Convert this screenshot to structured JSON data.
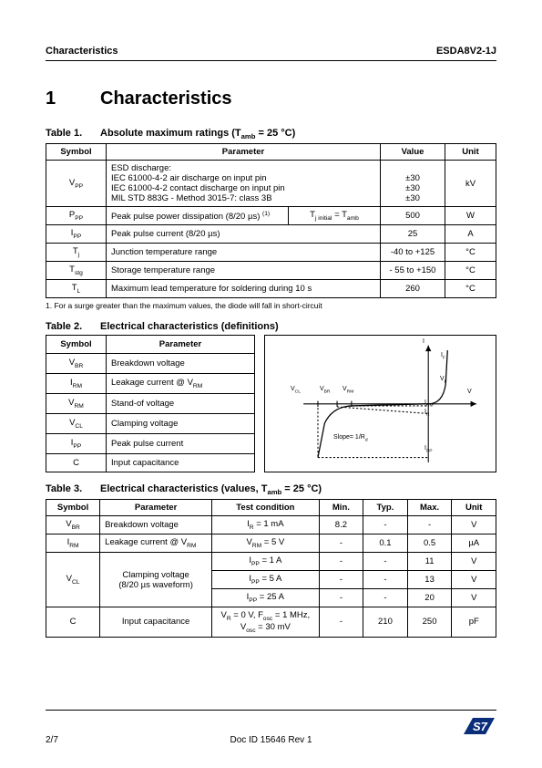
{
  "header": {
    "left": "Characteristics",
    "right": "ESDA8V2-1J"
  },
  "section": {
    "number": "1",
    "title": "Characteristics"
  },
  "table1": {
    "caption_num": "Table 1.",
    "caption": "Absolute maximum ratings (T",
    "caption_sub": "amb",
    "caption_end": " = 25 °C)",
    "headers": {
      "symbol": "Symbol",
      "parameter": "Parameter",
      "value": "Value",
      "unit": "Unit"
    },
    "rows": [
      {
        "symbol": "V",
        "sub": "PP",
        "param_lines": [
          "ESD discharge:",
          "IEC 61000-4-2 air discharge on input pin",
          "IEC 61000-4-2 contact discharge on input pin",
          "MIL STD 883G - Method 3015-7: class 3B"
        ],
        "value_lines": [
          "",
          "±30",
          "±30",
          "±30"
        ],
        "unit": "kV"
      },
      {
        "symbol": "P",
        "sub": "PP",
        "param": "Peak pulse power dissipation (8/20 µs)",
        "sup": "(1)",
        "cond_inline": "T<sub>j initial</sub> = T<sub>amb</sub>",
        "value": "500",
        "unit": "W"
      },
      {
        "symbol": "I",
        "sub": "PP",
        "param": "Peak pulse current (8/20 µs)",
        "value": "25",
        "unit": "A"
      },
      {
        "symbol": "T",
        "sub": "j",
        "param": "Junction temperature range",
        "value": "-40 to +125",
        "unit": "°C"
      },
      {
        "symbol": "T",
        "sub": "stg",
        "param": "Storage temperature range",
        "value": "- 55 to +150",
        "unit": "°C"
      },
      {
        "symbol": "T",
        "sub": "L",
        "param": "Maximum lead temperature for soldering during 10 s",
        "value": "260",
        "unit": "°C"
      }
    ]
  },
  "footnote1": "1.  For a surge greater than the maximum values, the diode will fall in short-circuit",
  "table2": {
    "caption_num": "Table 2.",
    "caption": "Electrical characteristics (definitions)",
    "headers": {
      "symbol": "Symbol",
      "parameter": "Parameter"
    },
    "rows": [
      {
        "symbol": "V",
        "sub": "BR",
        "param": "Breakdown voltage"
      },
      {
        "symbol": "I",
        "sub": "RM",
        "param": "Leakage current @ V",
        "param_sub": "RM"
      },
      {
        "symbol": "V",
        "sub": "RM",
        "param": "Stand-of voltage"
      },
      {
        "symbol": "V",
        "sub": "CL",
        "param": "Clamping voltage"
      },
      {
        "symbol": "I",
        "sub": "PP",
        "param": "Peak pulse current"
      },
      {
        "symbol": "C",
        "sub": "",
        "param": "Input capacitance"
      }
    ],
    "graph_labels": {
      "i": "I",
      "if": "I<sub>F</sub>",
      "vcl": "V<sub>CL</sub>",
      "vbr": "V<sub>BR</sub>",
      "vrm": "V<sub>RM</sub>",
      "v": "V",
      "irm": "I<sub>RM</sub>",
      "ir": "I<sub>R</sub>",
      "slope": "Slope= 1/R<sub>d</sub>",
      "ipp": "I<sub>PP</sub>",
      "vf": "V<sub>F</sub>"
    }
  },
  "table3": {
    "caption_num": "Table 3.",
    "caption": "Electrical characteristics (values, T",
    "caption_sub": "amb",
    "caption_end": " = 25 °C)",
    "headers": {
      "symbol": "Symbol",
      "parameter": "Parameter",
      "test": "Test condition",
      "min": "Min.",
      "typ": "Typ.",
      "max": "Max.",
      "unit": "Unit"
    },
    "rows": [
      {
        "symbol": "V",
        "sub": "BR",
        "param": "Breakdown voltage",
        "test": "I<sub>R</sub> = 1 mA",
        "min": "8.2",
        "typ": "-",
        "max": "-",
        "unit": "V"
      },
      {
        "symbol": "I",
        "sub": "RM",
        "param": "Leakage current @ V",
        "param_sub": "RM",
        "test": "V<sub>RM</sub> = 5 V",
        "min": "-",
        "typ": "0.1",
        "max": "0.5",
        "unit": "µA"
      },
      {
        "symbol": "V",
        "sub": "CL",
        "param": "Clamping voltage",
        "param2": "(8/20 µs waveform)",
        "test": "I<sub>PP</sub> = 1 A",
        "min": "-",
        "typ": "-",
        "max": "11",
        "unit": "V"
      },
      {
        "test": "I<sub>PP</sub> = 5 A",
        "min": "-",
        "typ": "-",
        "max": "13",
        "unit": "V"
      },
      {
        "test": "I<sub>PP</sub> = 25 A",
        "min": "-",
        "typ": "-",
        "max": "20",
        "unit": "V"
      },
      {
        "symbol": "C",
        "sub": "",
        "param": "Input capacitance",
        "test": "V<sub>R</sub> = 0 V, F<sub>osc</sub> = 1 MHz,<br>V<sub>osc</sub> = 30 mV",
        "min": "-",
        "typ": "210",
        "max": "250",
        "unit": "pF"
      }
    ]
  },
  "footer": {
    "left": "2/7",
    "center": "Doc ID 15646 Rev 1",
    "logo": "ST"
  },
  "colors": {
    "logo": "#0a2e7a"
  }
}
